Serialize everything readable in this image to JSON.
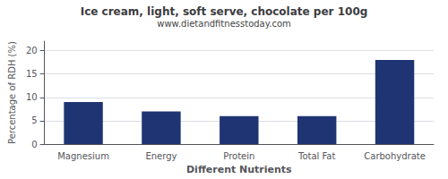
{
  "chart_data": {
    "type": "bar",
    "title": "Ice cream, light, soft serve, chocolate per 100g",
    "subtitle": "www.dietandfitnesstoday.com",
    "xlabel": "Different Nutrients",
    "ylabel": "Percentage of RDH (%)",
    "categories": [
      "Magnesium",
      "Energy",
      "Protein",
      "Total Fat",
      "Carbohydrate"
    ],
    "values": [
      9.0,
      7.0,
      6.0,
      6.0,
      18.0
    ],
    "color": "#1f3472",
    "ylim": [
      0,
      22
    ],
    "yticks": [
      0,
      5,
      10,
      15,
      20
    ],
    "grid": true
  }
}
